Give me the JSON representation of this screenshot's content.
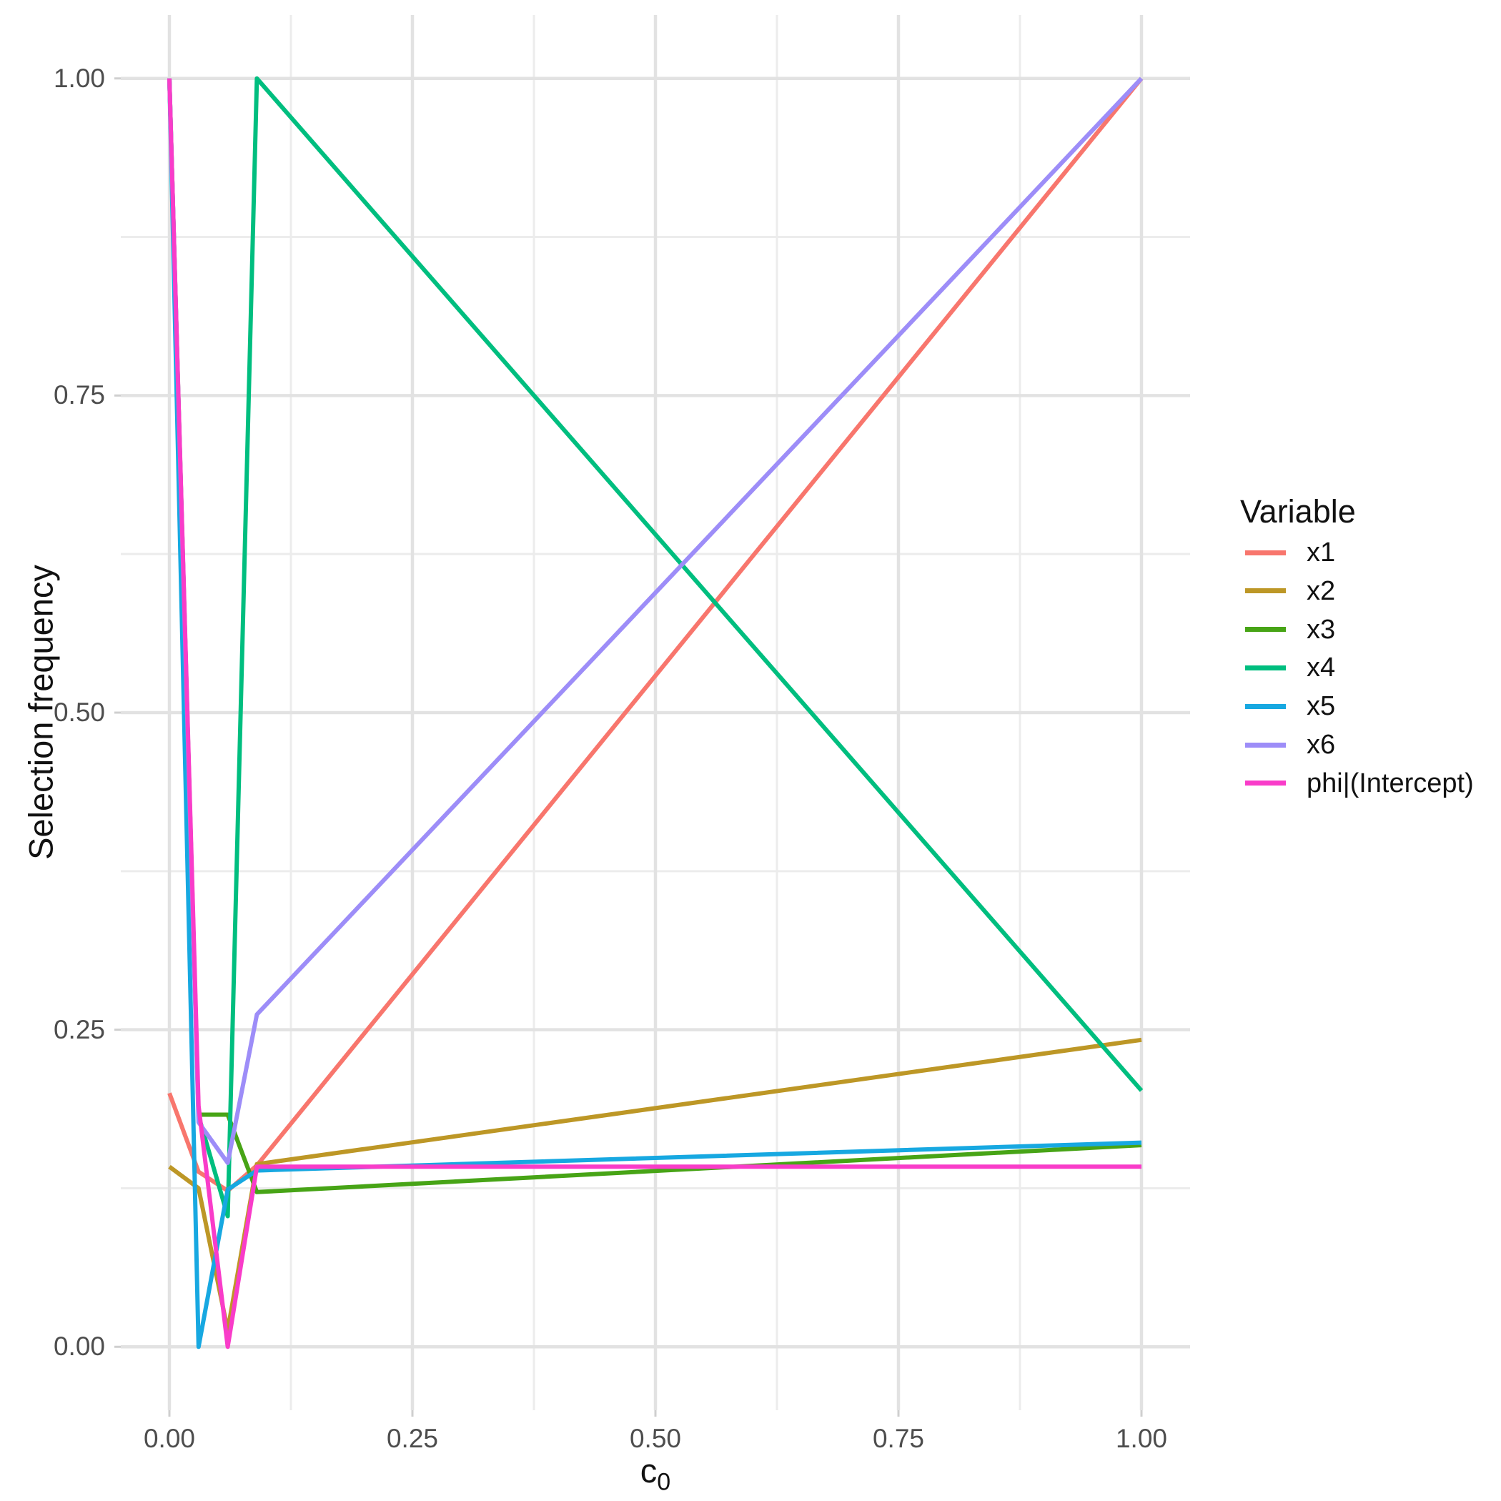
{
  "chart_data": {
    "type": "line",
    "title": "",
    "xlabel_main": "c",
    "xlabel_sub": "0",
    "ylabel": "Selection frequency",
    "x_ticks": {
      "values": [
        0,
        0.25,
        0.5,
        0.75,
        1.0
      ],
      "labels": [
        "0.00",
        "0.25",
        "0.50",
        "0.75",
        "1.00"
      ]
    },
    "y_ticks": {
      "values": [
        0,
        0.25,
        0.5,
        0.75,
        1.0
      ],
      "labels": [
        "0.00",
        "0.25",
        "0.50",
        "0.75",
        "1.00"
      ]
    },
    "x_range": [
      -0.05,
      1.05
    ],
    "y_range": [
      -0.05,
      1.05
    ],
    "grid": {
      "major_color": "#e2e2e2",
      "minor_color": "#ececec",
      "tick_color": "#cfcfcf"
    },
    "x": [
      0,
      0.03,
      0.06,
      0.09,
      1.0
    ],
    "series": [
      {
        "name": "x1",
        "color": "#F8766D",
        "values": [
          0.2,
          0.138,
          0.123,
          0.143,
          1.0
        ]
      },
      {
        "name": "x2",
        "color": "#BD9726",
        "values": [
          0.142,
          0.125,
          0.013,
          0.144,
          0.242
        ]
      },
      {
        "name": "x3",
        "color": "#47A416",
        "values": [
          1.0,
          0.183,
          0.183,
          0.122,
          0.159
        ]
      },
      {
        "name": "x4",
        "color": "#00BE7F",
        "values": [
          1.0,
          0.182,
          0.103,
          1.0,
          0.202
        ]
      },
      {
        "name": "x5",
        "color": "#17A8E1",
        "values": [
          1.0,
          0.0,
          0.124,
          0.139,
          0.161
        ]
      },
      {
        "name": "x6",
        "color": "#9D8DF8",
        "values": [
          1.0,
          0.177,
          0.145,
          0.262,
          1.0
        ]
      },
      {
        "name": "phi|(Intercept)",
        "color": "#F93CC9",
        "values": [
          1.0,
          0.19,
          0.0,
          0.142,
          0.142
        ]
      }
    ],
    "legend": {
      "title": "Variable",
      "position": "right"
    }
  }
}
